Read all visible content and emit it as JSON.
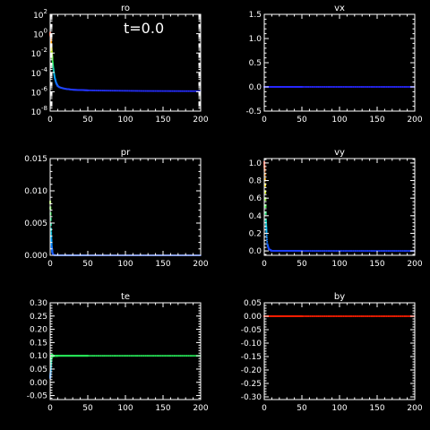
{
  "time_label": "t=0.0",
  "chart_data": [
    {
      "type": "scatter",
      "title": "ro",
      "xlim": [
        0,
        200
      ],
      "ylim": [
        1e-08,
        100
      ],
      "log_y": true,
      "xticks": [
        0,
        50,
        100,
        150,
        200
      ],
      "yticks": [
        1e-08,
        1e-06,
        0.0001,
        0.01,
        1,
        100
      ],
      "ytick_labels": [
        {
          "base": "10",
          "exp": "-8"
        },
        {
          "base": "10",
          "exp": "-6"
        },
        {
          "base": "10",
          "exp": "-4"
        },
        {
          "base": "10",
          "exp": "-2"
        },
        {
          "base": "10",
          "exp": "0"
        },
        {
          "base": "10",
          "exp": "2"
        }
      ],
      "series": [
        {
          "profile": "ro",
          "x": [
            0,
            0.5,
            1,
            1.5,
            2,
            3,
            4,
            5,
            6,
            8,
            10,
            12,
            15,
            20,
            25,
            30,
            40,
            50,
            60,
            75,
            100,
            125,
            150,
            175,
            200
          ],
          "y": [
            1.0,
            0.6,
            0.2,
            0.05,
            0.01,
            0.002,
            0.0004,
            0.0001,
            3e-05,
            8e-06,
            4e-06,
            3e-06,
            2.5e-06,
            2e-06,
            1.8e-06,
            1.6e-06,
            1.5e-06,
            1.4e-06,
            1.35e-06,
            1.3e-06,
            1.25e-06,
            1.2e-06,
            1.18e-06,
            1.16e-06,
            1.15e-06
          ]
        }
      ]
    },
    {
      "type": "scatter",
      "title": "vx",
      "xlim": [
        0,
        200
      ],
      "ylim": [
        -0.5,
        1.5
      ],
      "log_y": false,
      "xticks": [
        0,
        50,
        100,
        150,
        200
      ],
      "yticks": [
        -0.5,
        0.0,
        0.5,
        1.0,
        1.5
      ],
      "ytick_labels": [
        "-0.5",
        "0.0",
        "0.5",
        "1.0",
        "1.5"
      ],
      "series": [
        {
          "profile": "flat-blue",
          "x": [
            0,
            200
          ],
          "y": [
            0.0,
            0.0
          ]
        }
      ]
    },
    {
      "type": "scatter",
      "title": "pr",
      "xlim": [
        0,
        200
      ],
      "ylim": [
        0,
        0.015
      ],
      "log_y": false,
      "xticks": [
        0,
        50,
        100,
        150,
        200
      ],
      "yticks": [
        0.0,
        0.005,
        0.01,
        0.015
      ],
      "ytick_labels": [
        "0.000",
        "0.005",
        "0.010",
        "0.015"
      ],
      "series": [
        {
          "profile": "pr",
          "x": [
            0,
            0.5,
            1,
            1.5,
            2,
            3,
            4,
            6,
            10,
            200
          ],
          "y": [
            0.0082,
            0.006,
            0.004,
            0.0025,
            0.0012,
            0.0004,
            0.0001,
            2e-05,
            0.0,
            0.0
          ]
        }
      ]
    },
    {
      "type": "scatter",
      "title": "vy",
      "xlim": [
        0,
        200
      ],
      "ylim": [
        -0.05,
        1.05
      ],
      "log_y": false,
      "xticks": [
        0,
        50,
        100,
        150,
        200
      ],
      "yticks": [
        0.0,
        0.2,
        0.4,
        0.6,
        0.8,
        1.0
      ],
      "ytick_labels": [
        "0.0",
        "0.2",
        "0.4",
        "0.6",
        "0.8",
        "1.0"
      ],
      "series": [
        {
          "profile": "vy",
          "x": [
            0,
            0.5,
            1,
            1.5,
            2,
            3,
            4,
            6,
            10,
            200
          ],
          "y": [
            1.0,
            0.9,
            0.75,
            0.55,
            0.35,
            0.2,
            0.08,
            0.02,
            0.0,
            0.0
          ]
        }
      ]
    },
    {
      "type": "scatter",
      "title": "te",
      "xlim": [
        0,
        200
      ],
      "ylim": [
        -0.065,
        0.3
      ],
      "log_y": false,
      "xticks": [
        0,
        50,
        100,
        150,
        200
      ],
      "yticks": [
        -0.05,
        0.0,
        0.05,
        0.1,
        0.15,
        0.2,
        0.25,
        0.3
      ],
      "ytick_labels": [
        "-0.05",
        "0.00",
        "0.05",
        "0.10",
        "0.15",
        "0.20",
        "0.25",
        "0.30"
      ],
      "series": [
        {
          "profile": "te",
          "x": [
            0,
            0.5,
            1,
            1.5,
            2,
            3,
            200
          ],
          "y": [
            0.02,
            0.04,
            0.07,
            0.09,
            0.1,
            0.1,
            0.1
          ]
        }
      ]
    },
    {
      "type": "scatter",
      "title": "by",
      "xlim": [
        0,
        200
      ],
      "ylim": [
        -0.31,
        0.05
      ],
      "log_y": false,
      "xticks": [
        0,
        50,
        100,
        150,
        200
      ],
      "yticks": [
        -0.3,
        -0.25,
        -0.2,
        -0.15,
        -0.1,
        -0.05,
        0.0,
        0.05
      ],
      "ytick_labels": [
        "-0.30",
        "-0.25",
        "-0.20",
        "-0.15",
        "-0.10",
        "-0.05",
        "0.00",
        "0.05"
      ],
      "series": [
        {
          "profile": "flat-red",
          "x": [
            0,
            200
          ],
          "y": [
            0.0,
            0.0
          ]
        }
      ]
    }
  ]
}
